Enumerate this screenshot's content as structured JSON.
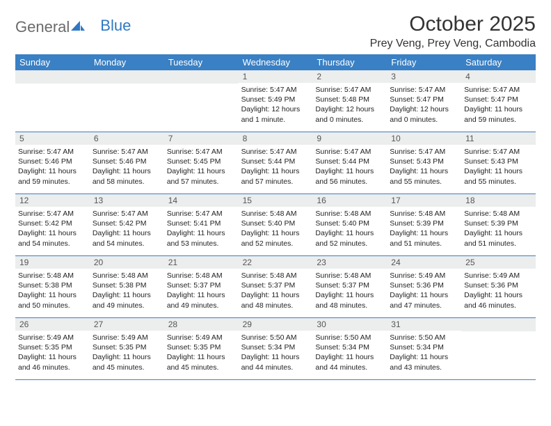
{
  "brand": {
    "word1": "General",
    "word2": "Blue"
  },
  "title": "October 2025",
  "location": "Prey Veng, Prey Veng, Cambodia",
  "colors": {
    "headerBlue": "#3a80c4",
    "dayNumBg": "#eceded",
    "logoGray": "#6b6b6b",
    "logoBlue": "#2f78c3",
    "text": "#333333"
  },
  "dayNames": [
    "Sunday",
    "Monday",
    "Tuesday",
    "Wednesday",
    "Thursday",
    "Friday",
    "Saturday"
  ],
  "weeks": [
    [
      null,
      null,
      null,
      {
        "n": "1",
        "sunrise": "5:47 AM",
        "sunset": "5:49 PM",
        "daylight": "12 hours and 1 minute."
      },
      {
        "n": "2",
        "sunrise": "5:47 AM",
        "sunset": "5:48 PM",
        "daylight": "12 hours and 0 minutes."
      },
      {
        "n": "3",
        "sunrise": "5:47 AM",
        "sunset": "5:47 PM",
        "daylight": "12 hours and 0 minutes."
      },
      {
        "n": "4",
        "sunrise": "5:47 AM",
        "sunset": "5:47 PM",
        "daylight": "11 hours and 59 minutes."
      }
    ],
    [
      {
        "n": "5",
        "sunrise": "5:47 AM",
        "sunset": "5:46 PM",
        "daylight": "11 hours and 59 minutes."
      },
      {
        "n": "6",
        "sunrise": "5:47 AM",
        "sunset": "5:46 PM",
        "daylight": "11 hours and 58 minutes."
      },
      {
        "n": "7",
        "sunrise": "5:47 AM",
        "sunset": "5:45 PM",
        "daylight": "11 hours and 57 minutes."
      },
      {
        "n": "8",
        "sunrise": "5:47 AM",
        "sunset": "5:44 PM",
        "daylight": "11 hours and 57 minutes."
      },
      {
        "n": "9",
        "sunrise": "5:47 AM",
        "sunset": "5:44 PM",
        "daylight": "11 hours and 56 minutes."
      },
      {
        "n": "10",
        "sunrise": "5:47 AM",
        "sunset": "5:43 PM",
        "daylight": "11 hours and 55 minutes."
      },
      {
        "n": "11",
        "sunrise": "5:47 AM",
        "sunset": "5:43 PM",
        "daylight": "11 hours and 55 minutes."
      }
    ],
    [
      {
        "n": "12",
        "sunrise": "5:47 AM",
        "sunset": "5:42 PM",
        "daylight": "11 hours and 54 minutes."
      },
      {
        "n": "13",
        "sunrise": "5:47 AM",
        "sunset": "5:42 PM",
        "daylight": "11 hours and 54 minutes."
      },
      {
        "n": "14",
        "sunrise": "5:47 AM",
        "sunset": "5:41 PM",
        "daylight": "11 hours and 53 minutes."
      },
      {
        "n": "15",
        "sunrise": "5:48 AM",
        "sunset": "5:40 PM",
        "daylight": "11 hours and 52 minutes."
      },
      {
        "n": "16",
        "sunrise": "5:48 AM",
        "sunset": "5:40 PM",
        "daylight": "11 hours and 52 minutes."
      },
      {
        "n": "17",
        "sunrise": "5:48 AM",
        "sunset": "5:39 PM",
        "daylight": "11 hours and 51 minutes."
      },
      {
        "n": "18",
        "sunrise": "5:48 AM",
        "sunset": "5:39 PM",
        "daylight": "11 hours and 51 minutes."
      }
    ],
    [
      {
        "n": "19",
        "sunrise": "5:48 AM",
        "sunset": "5:38 PM",
        "daylight": "11 hours and 50 minutes."
      },
      {
        "n": "20",
        "sunrise": "5:48 AM",
        "sunset": "5:38 PM",
        "daylight": "11 hours and 49 minutes."
      },
      {
        "n": "21",
        "sunrise": "5:48 AM",
        "sunset": "5:37 PM",
        "daylight": "11 hours and 49 minutes."
      },
      {
        "n": "22",
        "sunrise": "5:48 AM",
        "sunset": "5:37 PM",
        "daylight": "11 hours and 48 minutes."
      },
      {
        "n": "23",
        "sunrise": "5:48 AM",
        "sunset": "5:37 PM",
        "daylight": "11 hours and 48 minutes."
      },
      {
        "n": "24",
        "sunrise": "5:49 AM",
        "sunset": "5:36 PM",
        "daylight": "11 hours and 47 minutes."
      },
      {
        "n": "25",
        "sunrise": "5:49 AM",
        "sunset": "5:36 PM",
        "daylight": "11 hours and 46 minutes."
      }
    ],
    [
      {
        "n": "26",
        "sunrise": "5:49 AM",
        "sunset": "5:35 PM",
        "daylight": "11 hours and 46 minutes."
      },
      {
        "n": "27",
        "sunrise": "5:49 AM",
        "sunset": "5:35 PM",
        "daylight": "11 hours and 45 minutes."
      },
      {
        "n": "28",
        "sunrise": "5:49 AM",
        "sunset": "5:35 PM",
        "daylight": "11 hours and 45 minutes."
      },
      {
        "n": "29",
        "sunrise": "5:50 AM",
        "sunset": "5:34 PM",
        "daylight": "11 hours and 44 minutes."
      },
      {
        "n": "30",
        "sunrise": "5:50 AM",
        "sunset": "5:34 PM",
        "daylight": "11 hours and 44 minutes."
      },
      {
        "n": "31",
        "sunrise": "5:50 AM",
        "sunset": "5:34 PM",
        "daylight": "11 hours and 43 minutes."
      },
      null
    ]
  ],
  "labels": {
    "sunrise": "Sunrise:",
    "sunset": "Sunset:",
    "daylight": "Daylight:"
  }
}
